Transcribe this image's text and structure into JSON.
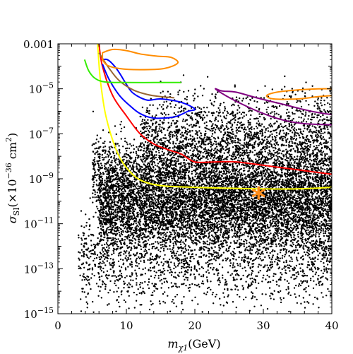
{
  "chart_data": {
    "type": "scatter",
    "title": "",
    "xlabel": {
      "main": "m",
      "sub": "χ1",
      "unit": "(GeV)"
    },
    "ylabel": {
      "main": "σ",
      "sub": "SI",
      "open": "(×",
      "base": "10",
      "exp": "−36",
      "unit": " cm",
      "unit_exp": "2",
      "close": ")"
    },
    "xlim": [
      0,
      40
    ],
    "ylim_log10": [
      -15,
      -3
    ],
    "y_scale": "log",
    "grid": false,
    "x_ticks": [
      {
        "value": 0,
        "label": "0"
      },
      {
        "value": 10,
        "label": "10"
      },
      {
        "value": 20,
        "label": "20"
      },
      {
        "value": 30,
        "label": "30"
      },
      {
        "value": 40,
        "label": "40"
      }
    ],
    "y_ticks": [
      {
        "log10": -3,
        "base": "0.001",
        "exp": ""
      },
      {
        "log10": -5,
        "base": "10",
        "exp": "−5"
      },
      {
        "log10": -7,
        "base": "10",
        "exp": "−7"
      },
      {
        "log10": -9,
        "base": "10",
        "exp": "−9"
      },
      {
        "log10": -11,
        "base": "10",
        "exp": "−11"
      },
      {
        "log10": -13,
        "base": "10",
        "exp": "−13"
      },
      {
        "log10": -15,
        "base": "10",
        "exp": "−15"
      }
    ],
    "scatter_color": "#000000",
    "scatter_regions": [
      {
        "x_range": [
          6,
          40
        ],
        "log10_center": -10.3,
        "log10_spread": 0.9,
        "count": 5200
      },
      {
        "x_range": [
          5,
          40
        ],
        "log10_center": -8.8,
        "log10_spread": 0.9,
        "count": 3200
      },
      {
        "x_range": [
          12,
          40
        ],
        "log10_center": -7.2,
        "log10_spread": 0.7,
        "count": 1400
      },
      {
        "x_range": [
          15,
          40
        ],
        "log10_center": -5.8,
        "log10_spread": 0.5,
        "count": 260
      },
      {
        "x_range": [
          3,
          40
        ],
        "log10_center": -12.3,
        "log10_spread": 0.9,
        "count": 1700
      },
      {
        "x_range": [
          3,
          40
        ],
        "log10_center": -13.8,
        "log10_spread": 0.6,
        "count": 260
      }
    ],
    "marker": {
      "x": 29.3,
      "log10": -9.8,
      "symbol": "*",
      "color": "#ff8c1a"
    },
    "curves": [
      {
        "color": "#ffff00",
        "closed": false,
        "points": [
          [
            5.8,
            -3.0
          ],
          [
            6.2,
            -4.6
          ],
          [
            7.0,
            -6.2
          ],
          [
            8.5,
            -7.7
          ],
          [
            10,
            -8.5
          ],
          [
            12,
            -9.05
          ],
          [
            15,
            -9.3
          ],
          [
            20,
            -9.38
          ],
          [
            25,
            -9.42
          ],
          [
            30,
            -9.45
          ],
          [
            35,
            -9.45
          ],
          [
            40,
            -9.38
          ]
        ]
      },
      {
        "color": "#ff0000",
        "closed": false,
        "points": [
          [
            6.0,
            -3.0
          ],
          [
            6.5,
            -4.0
          ],
          [
            8,
            -5.3
          ],
          [
            10,
            -6.2
          ],
          [
            12,
            -7.0
          ],
          [
            14,
            -7.45
          ],
          [
            16,
            -7.7
          ],
          [
            18,
            -7.9
          ],
          [
            20,
            -8.25
          ],
          [
            23,
            -8.25
          ],
          [
            26,
            -8.25
          ],
          [
            30,
            -8.4
          ],
          [
            35,
            -8.6
          ],
          [
            40,
            -8.8
          ]
        ]
      },
      {
        "color": "#0000ff",
        "closed": false,
        "points": [
          [
            6.5,
            -3.9
          ],
          [
            7.5,
            -4.6
          ],
          [
            9,
            -5.3
          ],
          [
            10.5,
            -5.75
          ],
          [
            12,
            -6.1
          ],
          [
            14,
            -6.3
          ],
          [
            17,
            -6.25
          ],
          [
            19,
            -6.0
          ],
          [
            20,
            -5.9
          ],
          [
            18,
            -5.6
          ],
          [
            15,
            -5.45
          ],
          [
            13,
            -5.5
          ],
          [
            11,
            -5.2
          ],
          [
            10,
            -4.8
          ],
          [
            9,
            -4.3
          ],
          [
            8,
            -3.9
          ],
          [
            7.2,
            -3.7
          ],
          [
            6.6,
            -3.7
          ]
        ]
      },
      {
        "color": "#996633",
        "closed": false,
        "points": [
          [
            6,
            -3.4
          ],
          [
            7.5,
            -4.1
          ],
          [
            9,
            -4.65
          ],
          [
            11,
            -5.05
          ],
          [
            13,
            -5.25
          ],
          [
            15,
            -5.35
          ],
          [
            17,
            -5.4
          ]
        ]
      },
      {
        "color": "#ff8c00",
        "closed": true,
        "points": [
          [
            6.5,
            -3.4
          ],
          [
            8,
            -3.25
          ],
          [
            10,
            -3.3
          ],
          [
            12,
            -3.45
          ],
          [
            14.5,
            -3.55
          ],
          [
            16.5,
            -3.6
          ],
          [
            17.5,
            -3.85
          ],
          [
            15.5,
            -4.1
          ],
          [
            12,
            -4.15
          ],
          [
            9,
            -4.1
          ],
          [
            7.2,
            -3.95
          ],
          [
            6.5,
            -3.7
          ]
        ]
      },
      {
        "color": "#ff8c00",
        "closed": false,
        "points": [
          [
            40,
            -5.0
          ],
          [
            38,
            -5.0
          ],
          [
            35,
            -5.05
          ],
          [
            32,
            -5.15
          ],
          [
            30.5,
            -5.3
          ],
          [
            31.5,
            -5.45
          ],
          [
            35,
            -5.45
          ],
          [
            38,
            -5.35
          ],
          [
            40,
            -5.3
          ]
        ]
      },
      {
        "color": "#33ee00",
        "closed": false,
        "points": [
          [
            3.9,
            -3.7
          ],
          [
            4.5,
            -4.2
          ],
          [
            5.5,
            -4.55
          ],
          [
            7,
            -4.7
          ],
          [
            10,
            -4.72
          ],
          [
            14,
            -4.72
          ],
          [
            18,
            -4.72
          ]
        ]
      },
      {
        "color": "#800080",
        "closed": false,
        "points": [
          [
            40,
            -6.15
          ],
          [
            37,
            -6.0
          ],
          [
            33,
            -5.7
          ],
          [
            29,
            -5.4
          ],
          [
            26,
            -5.15
          ],
          [
            24,
            -5.1
          ],
          [
            23,
            -5.0
          ],
          [
            24.5,
            -5.3
          ],
          [
            27,
            -5.7
          ],
          [
            30,
            -6.1
          ],
          [
            33,
            -6.4
          ],
          [
            36,
            -6.55
          ],
          [
            40,
            -6.6
          ]
        ]
      }
    ]
  }
}
